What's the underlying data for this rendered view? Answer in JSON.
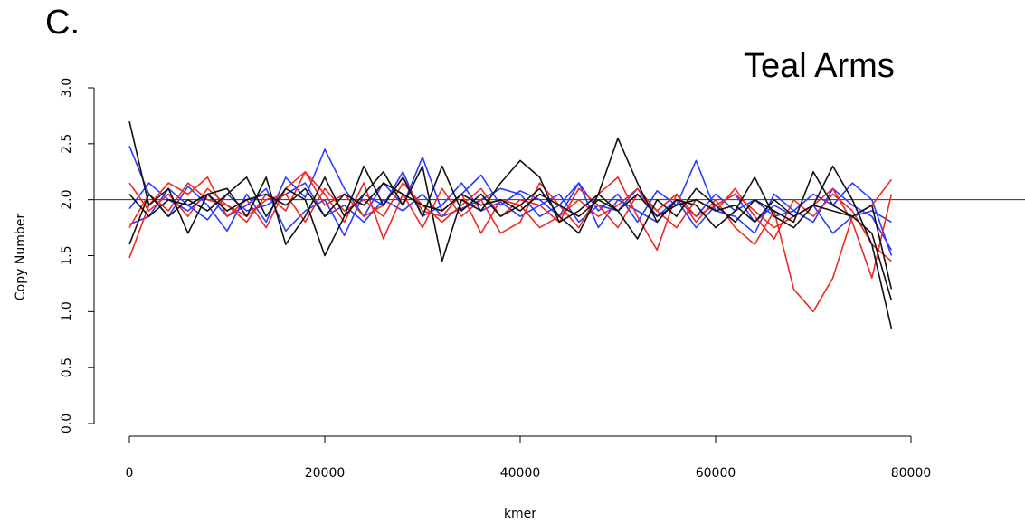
{
  "panel_label": "C.",
  "chart_data": {
    "type": "line",
    "title": "Teal Arms",
    "xlabel": "kmer",
    "ylabel": "Copy Number",
    "xlim": [
      0,
      80000
    ],
    "ylim": [
      0,
      3
    ],
    "x_ticks": [
      "0",
      "20000",
      "40000",
      "60000",
      "80000"
    ],
    "y_ticks": [
      "0.0",
      "0.5",
      "1.0",
      "1.5",
      "2.0",
      "2.5",
      "3.0"
    ],
    "reference_line_y": 2.0,
    "grid": false,
    "colors": {
      "blue": "#2a3cff",
      "red": "#ee2a24",
      "black": "#111111",
      "reference": "#333333"
    },
    "x": [
      0,
      2000,
      4000,
      6000,
      8000,
      10000,
      12000,
      14000,
      16000,
      18000,
      20000,
      22000,
      24000,
      26000,
      28000,
      30000,
      32000,
      34000,
      36000,
      38000,
      40000,
      42000,
      44000,
      46000,
      48000,
      50000,
      52000,
      54000,
      56000,
      58000,
      60000,
      62000,
      64000,
      66000,
      68000,
      70000,
      72000,
      74000,
      76000,
      78000
    ],
    "series": [
      {
        "color": "blue",
        "values": [
          2.48,
          2.05,
          1.85,
          2.12,
          1.95,
          1.72,
          2.05,
          1.8,
          2.2,
          2.02,
          2.45,
          2.1,
          1.85,
          2.15,
          1.95,
          2.38,
          1.9,
          2.05,
          2.22,
          1.95,
          2.08,
          2.0,
          1.85,
          2.15,
          1.9,
          2.05,
          1.8,
          2.08,
          1.95,
          2.35,
          1.9,
          1.85,
          1.7,
          2.05,
          1.9,
          1.8,
          2.1,
          1.95,
          1.85,
          1.55
        ]
      },
      {
        "color": "blue",
        "values": [
          1.92,
          2.15,
          2.0,
          1.9,
          2.05,
          1.85,
          1.95,
          2.1,
          1.72,
          1.9,
          2.0,
          1.68,
          2.05,
          1.95,
          2.25,
          1.85,
          1.95,
          2.15,
          1.9,
          1.98,
          1.85,
          1.95,
          2.05,
          1.8,
          1.95,
          1.9,
          2.1,
          1.85,
          2.0,
          1.75,
          1.95,
          2.05,
          1.8,
          1.95,
          1.85,
          1.95,
          1.7,
          1.85,
          1.9,
          1.8
        ]
      },
      {
        "color": "blue",
        "values": [
          1.78,
          1.85,
          2.1,
          1.95,
          1.82,
          2.05,
          1.9,
          1.95,
          2.05,
          2.15,
          1.85,
          1.95,
          1.8,
          2.0,
          1.9,
          2.05,
          1.85,
          1.92,
          2.0,
          2.1,
          2.05,
          1.85,
          1.95,
          2.15,
          1.75,
          2.0,
          1.9,
          1.8,
          2.0,
          1.85,
          2.05,
          1.9,
          2.0,
          1.85,
          1.9,
          2.05,
          1.95,
          2.15,
          2.0,
          1.5
        ]
      },
      {
        "color": "red",
        "values": [
          1.48,
          1.95,
          2.15,
          2.05,
          2.2,
          1.85,
          2.0,
          1.75,
          2.1,
          2.25,
          2.05,
          1.8,
          2.15,
          1.65,
          2.05,
          1.75,
          2.1,
          1.85,
          2.0,
          1.7,
          1.8,
          2.15,
          1.95,
          1.75,
          2.05,
          2.2,
          1.85,
          1.55,
          2.05,
          1.8,
          2.0,
          1.75,
          1.6,
          1.9,
          1.2,
          1.0,
          1.3,
          1.85,
          1.95,
          2.18
        ]
      },
      {
        "color": "red",
        "values": [
          1.75,
          2.05,
          1.9,
          2.15,
          2.0,
          1.95,
          1.8,
          2.05,
          1.9,
          2.25,
          1.95,
          2.05,
          1.85,
          1.95,
          2.2,
          1.9,
          1.85,
          2.05,
          1.7,
          2.0,
          1.95,
          1.75,
          1.85,
          2.0,
          1.85,
          1.95,
          2.1,
          1.9,
          1.75,
          2.0,
          1.9,
          2.1,
          1.85,
          1.65,
          2.0,
          1.85,
          2.05,
          1.9,
          1.6,
          1.45
        ]
      },
      {
        "color": "red",
        "values": [
          2.15,
          1.9,
          2.05,
          1.85,
          2.1,
          1.95,
          1.85,
          2.0,
          2.05,
          1.8,
          2.1,
          1.9,
          2.0,
          1.85,
          2.15,
          1.95,
          1.8,
          1.95,
          2.1,
          1.85,
          2.0,
          1.95,
          1.8,
          2.1,
          1.95,
          1.75,
          2.05,
          1.9,
          2.05,
          1.85,
          1.95,
          2.05,
          1.9,
          1.75,
          1.85,
          1.95,
          2.1,
          1.8,
          1.3,
          2.05
        ]
      },
      {
        "color": "black",
        "values": [
          2.7,
          1.95,
          2.1,
          1.7,
          2.05,
          2.1,
          1.85,
          2.2,
          1.6,
          1.85,
          2.2,
          1.85,
          2.05,
          2.25,
          1.95,
          2.3,
          1.45,
          2.0,
          1.9,
          2.15,
          2.35,
          2.2,
          1.8,
          1.9,
          2.05,
          2.55,
          2.15,
          1.8,
          2.0,
          1.95,
          1.75,
          1.9,
          2.2,
          1.85,
          1.75,
          1.95,
          2.3,
          2.0,
          1.6,
          0.85
        ]
      },
      {
        "color": "black",
        "values": [
          1.6,
          2.05,
          1.85,
          2.0,
          1.9,
          2.05,
          2.2,
          1.85,
          2.1,
          2.0,
          1.5,
          1.85,
          2.3,
          1.95,
          2.2,
          1.85,
          2.3,
          1.9,
          2.05,
          1.85,
          1.95,
          2.1,
          1.85,
          1.7,
          2.05,
          1.9,
          1.65,
          2.0,
          1.85,
          2.1,
          1.95,
          1.8,
          2.0,
          1.9,
          1.8,
          2.25,
          1.95,
          1.85,
          1.95,
          1.2
        ]
      },
      {
        "color": "black",
        "values": [
          2.05,
          1.85,
          2.0,
          1.95,
          2.05,
          1.9,
          2.0,
          2.05,
          1.95,
          2.1,
          1.85,
          2.05,
          1.95,
          2.15,
          2.05,
          1.95,
          1.9,
          2.05,
          1.95,
          2.0,
          1.9,
          2.05,
          1.95,
          1.85,
          2.0,
          1.9,
          2.05,
          1.85,
          1.95,
          2.0,
          1.9,
          1.95,
          1.8,
          2.0,
          1.85,
          1.95,
          1.9,
          1.85,
          1.7,
          1.1
        ]
      }
    ]
  }
}
